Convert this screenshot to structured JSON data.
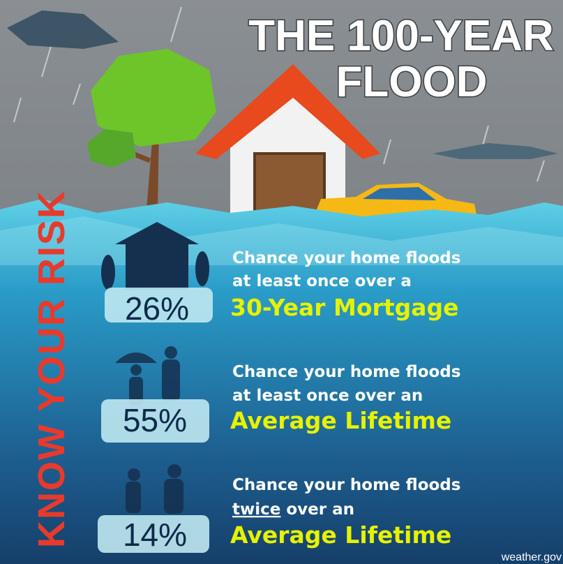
{
  "title": {
    "line1": "THE 100-YEAR",
    "line2": "FLOOD"
  },
  "side_label": "KNOW YOUR RISK",
  "items": [
    {
      "percent": "26%",
      "line1": "Chance your home floods",
      "line2": "at least once over a",
      "highlight": "30-Year Mortgage"
    },
    {
      "percent": "55%",
      "line1": "Chance your home floods",
      "line2": "at least once over an",
      "highlight": "Average Lifetime"
    },
    {
      "percent": "14%",
      "line1": "Chance your home floods",
      "line2_underlined": "twice",
      "line2_rest": "over an",
      "highlight": "Average Lifetime"
    }
  ],
  "footer": "weather.gov"
}
